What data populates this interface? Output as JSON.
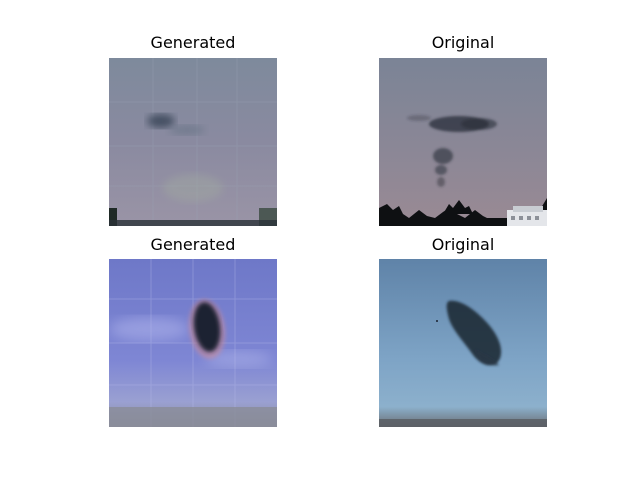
{
  "panels": [
    {
      "title": "Generated"
    },
    {
      "title": "Original"
    },
    {
      "title": "Generated"
    },
    {
      "title": "Original"
    }
  ]
}
